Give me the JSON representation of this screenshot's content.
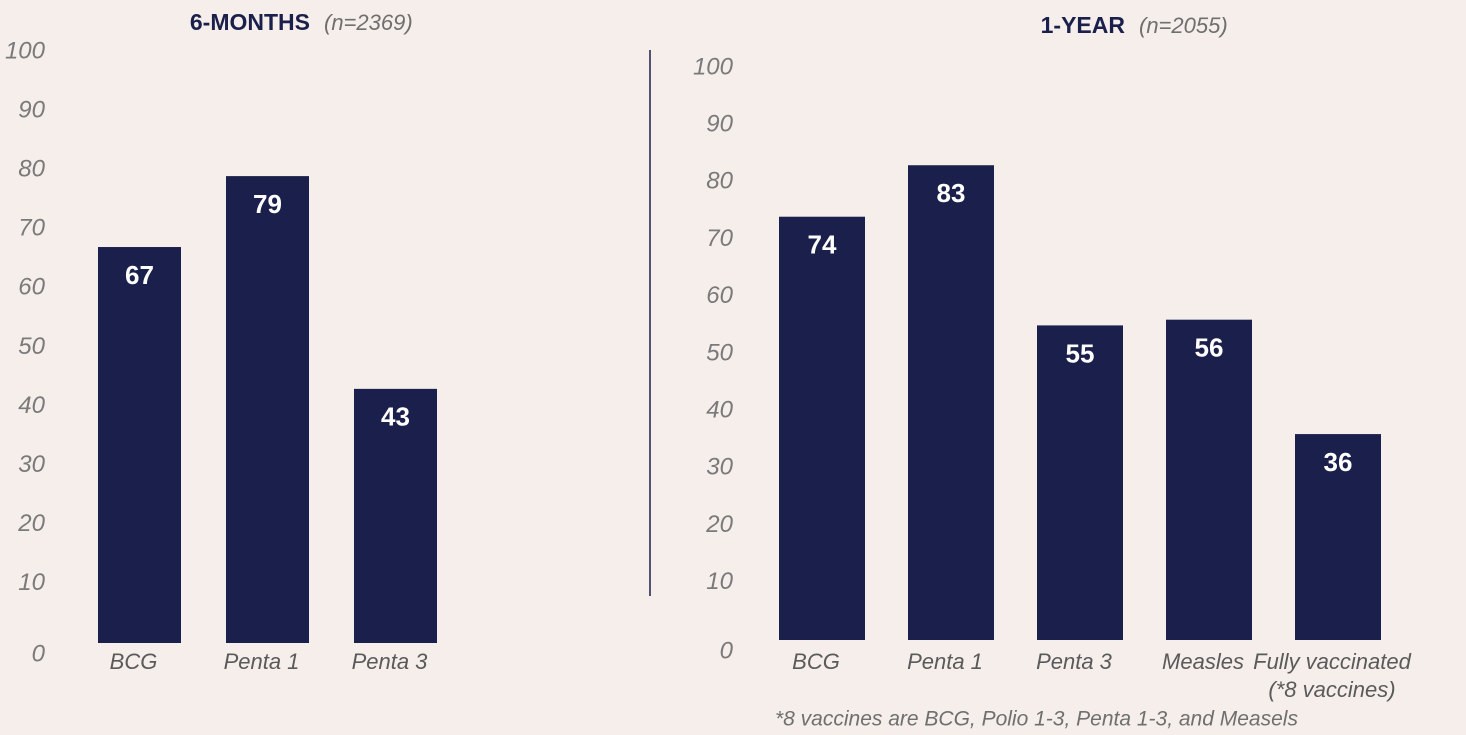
{
  "chart_data": [
    {
      "type": "bar",
      "title": "6-MONTHS",
      "subtitle": "(n=2369)",
      "categories": [
        "BCG",
        "Penta 1",
        "Penta 3"
      ],
      "values": [
        67,
        79,
        43
      ],
      "color": "#1b1f4b",
      "ylim": [
        0,
        100
      ],
      "yticks": [
        0,
        10,
        20,
        30,
        40,
        50,
        60,
        70,
        80,
        90,
        100
      ]
    },
    {
      "type": "bar",
      "title": "1-YEAR",
      "subtitle": "(n=2055)",
      "categories": [
        "BCG",
        "Penta 1",
        "Penta 3",
        "Measles",
        "Fully vaccinated\n(*8 vaccines)"
      ],
      "values": [
        74,
        83,
        55,
        56,
        36
      ],
      "color": "#1b1f4b",
      "ylim": [
        0,
        100
      ],
      "yticks": [
        0,
        10,
        20,
        30,
        40,
        50,
        60,
        70,
        80,
        90,
        100
      ],
      "note": "*8 vaccines are BCG, Polio 1-3, Penta 1-3, and Measels"
    }
  ]
}
